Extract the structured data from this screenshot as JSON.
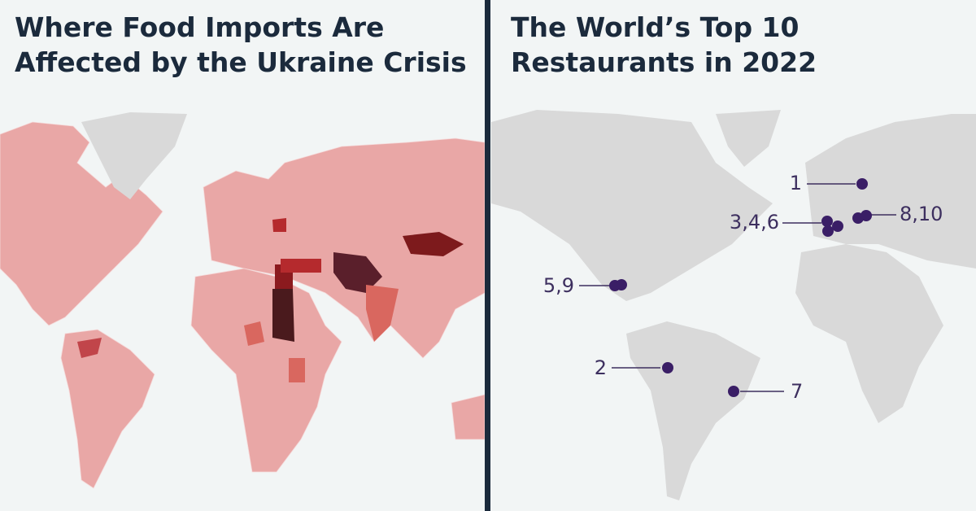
{
  "panels": [
    {
      "title": [
        "Where Food Imports Are",
        "Affected by the Ukraine Crisis"
      ]
    },
    {
      "title": [
        "The World’s Top 10",
        "Restaurants in 2022"
      ],
      "markers": [
        {
          "label": "1"
        },
        {
          "label": "3,4,6"
        },
        {
          "label": "8,10"
        },
        {
          "label": "5,9"
        },
        {
          "label": "2"
        },
        {
          "label": "7"
        }
      ]
    }
  ]
}
